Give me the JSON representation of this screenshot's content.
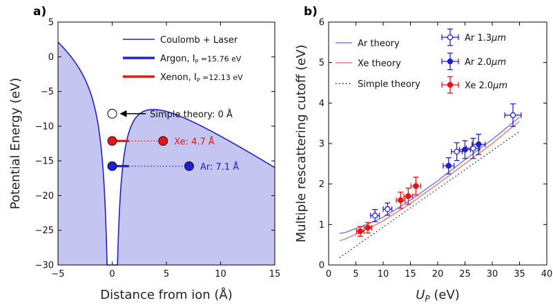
{
  "chart_data": [
    {
      "panel_label": "a)",
      "type": "line",
      "xlabel": "Distance from ion (Å)",
      "ylabel": "Potential Energy (eV)",
      "xlim": [
        -5,
        15
      ],
      "ylim": [
        -30,
        5
      ],
      "xticks": [
        "−5",
        "0",
        "5",
        "10",
        "15"
      ],
      "yticks": [
        "5",
        "0",
        "−5",
        "−10",
        "−15",
        "−20",
        "−25",
        "−30"
      ],
      "xticks_values": [
        -5,
        0,
        5,
        10,
        15
      ],
      "yticks_values": [
        5,
        0,
        -5,
        -10,
        -15,
        -20,
        -25,
        -30
      ],
      "legend": [
        {
          "label": "Coulomb + Laser",
          "color": "#1f1fd6"
        },
        {
          "label": "Argon, I",
          "sub": "P",
          "suffix": " =15.76 eV",
          "color": "#1f1fd6"
        },
        {
          "label": "Xenon, I",
          "sub": "P",
          "suffix": " =12.13 eV",
          "color": "#e81414"
        }
      ],
      "legend_position": "top-right",
      "curve": {
        "name": "Coulomb + Laser",
        "color": "#1f1fd6",
        "fill": "#c5c5f1",
        "field_eV_per_A": 1.0,
        "coulomb_k": 14.4
      },
      "markers": [
        {
          "name": "Simple theory",
          "x": 0,
          "y": -8.2,
          "label": "Simple theory: 0 Å",
          "arrow_from_x": 3.1,
          "color": "#ffffff"
        },
        {
          "name": "Xenon",
          "x1": 0,
          "x2": 4.7,
          "y": -12.13,
          "label": "Xe: 4.7 Å",
          "color": "#e81414"
        },
        {
          "name": "Argon",
          "x1": 0,
          "x2": 7.1,
          "y": -15.76,
          "label": "Ar: 7.1 Å",
          "color": "#1f1fd6"
        }
      ]
    },
    {
      "panel_label": "b)",
      "type": "scatter",
      "xlabel": "U",
      "xlabel_sub": "P",
      "xlabel_unit": " (eV)",
      "ylabel": "Multiple rescattering cutoff (eV)",
      "xlim": [
        0,
        40
      ],
      "ylim": [
        0,
        6
      ],
      "xticks": [
        "0",
        "5",
        "10",
        "15",
        "20",
        "25",
        "30",
        "35",
        "40"
      ],
      "yticks": [
        "0",
        "1",
        "2",
        "3",
        "4",
        "5",
        "6"
      ],
      "xticks_values": [
        0,
        5,
        10,
        15,
        20,
        25,
        30,
        35,
        40
      ],
      "yticks_values": [
        0,
        1,
        2,
        3,
        4,
        5,
        6
      ],
      "legend_left": [
        {
          "label": "Ar theory",
          "color": "#7b7bf0",
          "style": "line"
        },
        {
          "label": "Xe theory",
          "color": "#f07b7b",
          "style": "line"
        },
        {
          "label": "Simple theory",
          "color": "#111111",
          "style": "dotted"
        }
      ],
      "legend_right": [
        {
          "label": "Ar 1.3",
          "unit": "μm",
          "color": "#1f1fd6",
          "marker": "open"
        },
        {
          "label": "Ar 2.0",
          "unit": "μm",
          "color": "#1f1fd6",
          "marker": "filled"
        },
        {
          "label": "Xe 2.0",
          "unit": "μm",
          "color": "#e81414",
          "marker": "filled"
        }
      ],
      "lines": [
        {
          "name": "Ar theory",
          "color": "#7b7bf0",
          "x": [
            2,
            3,
            4,
            6,
            8,
            10,
            15,
            20,
            25,
            30,
            35
          ],
          "y": [
            0.78,
            0.8,
            0.85,
            0.95,
            1.06,
            1.18,
            1.6,
            2.08,
            2.6,
            3.1,
            3.65
          ]
        },
        {
          "name": "Xe theory",
          "color": "#f07b7b",
          "x": [
            2,
            3,
            4,
            6,
            8,
            10,
            15,
            20,
            25,
            30,
            35
          ],
          "y": [
            0.6,
            0.64,
            0.7,
            0.82,
            0.95,
            1.09,
            1.52,
            2.0,
            2.5,
            3.0,
            3.55
          ]
        },
        {
          "name": "Simple theory",
          "color": "#111111",
          "x": [
            2,
            35
          ],
          "y": [
            0.18,
            3.3
          ]
        }
      ],
      "series": [
        {
          "name": "Ar 1.3μm",
          "color": "#1f1fd6",
          "marker": "open",
          "points": [
            {
              "x": 8.5,
              "y": 1.22,
              "xerr": 0.8,
              "yerr": 0.15
            },
            {
              "x": 10.8,
              "y": 1.38,
              "xerr": 0.8,
              "yerr": 0.15
            },
            {
              "x": 23.5,
              "y": 2.8,
              "xerr": 1.0,
              "yerr": 0.22
            },
            {
              "x": 26.5,
              "y": 2.88,
              "xerr": 1.2,
              "yerr": 0.25
            },
            {
              "x": 33.8,
              "y": 3.7,
              "xerr": 1.5,
              "yerr": 0.28
            }
          ]
        },
        {
          "name": "Ar 2.0μm",
          "color": "#1f1fd6",
          "marker": "filled",
          "points": [
            {
              "x": 22.0,
              "y": 2.45,
              "xerr": 1.0,
              "yerr": 0.2
            },
            {
              "x": 25.0,
              "y": 2.85,
              "xerr": 1.0,
              "yerr": 0.22
            },
            {
              "x": 27.5,
              "y": 2.98,
              "xerr": 1.2,
              "yerr": 0.25
            }
          ]
        },
        {
          "name": "Xe 2.0μm",
          "color": "#e81414",
          "marker": "filled",
          "points": [
            {
              "x": 5.8,
              "y": 0.83,
              "xerr": 0.7,
              "yerr": 0.12
            },
            {
              "x": 7.2,
              "y": 0.92,
              "xerr": 0.7,
              "yerr": 0.13
            },
            {
              "x": 13.2,
              "y": 1.6,
              "xerr": 0.8,
              "yerr": 0.2
            },
            {
              "x": 14.6,
              "y": 1.7,
              "xerr": 0.8,
              "yerr": 0.2
            },
            {
              "x": 16.0,
              "y": 1.95,
              "xerr": 0.9,
              "yerr": 0.22
            }
          ]
        }
      ]
    }
  ]
}
